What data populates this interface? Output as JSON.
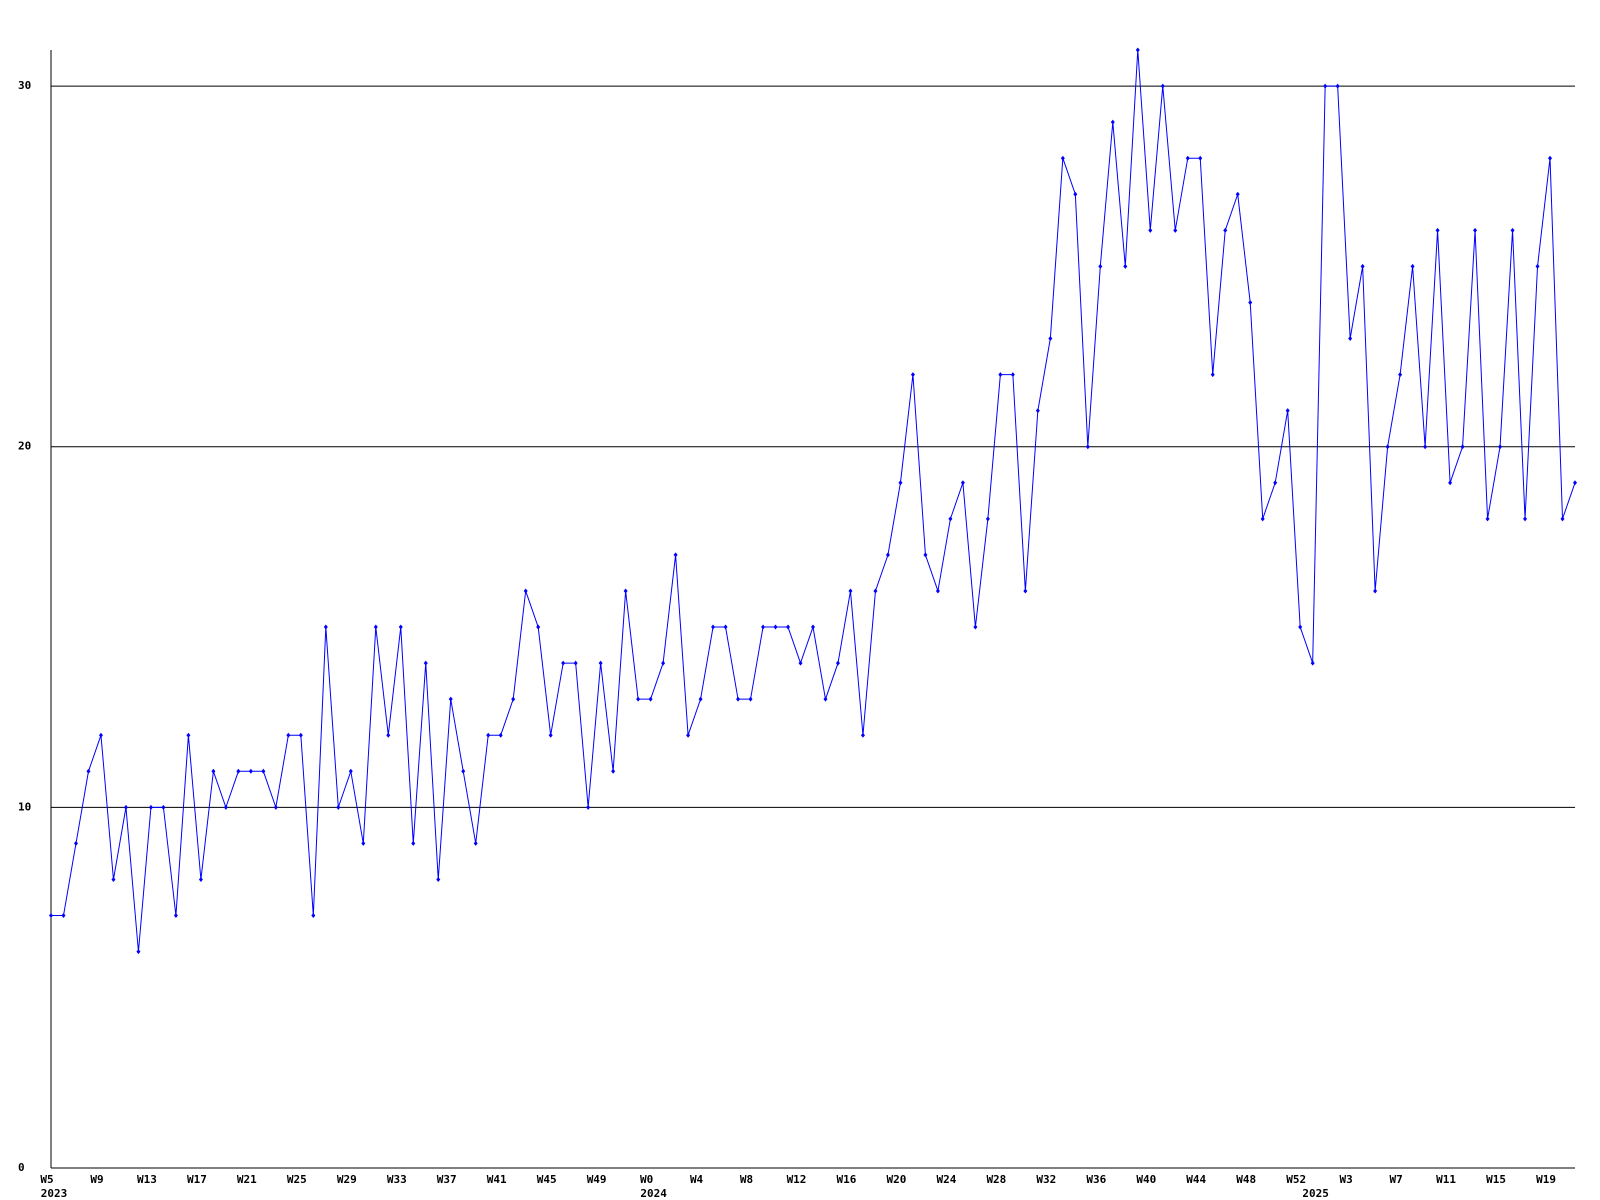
{
  "chart_data": {
    "type": "line",
    "categories": [
      "W5",
      null,
      null,
      null,
      "W9",
      null,
      null,
      null,
      "W13",
      null,
      null,
      null,
      "W17",
      null,
      null,
      null,
      "W21",
      null,
      null,
      null,
      "W25",
      null,
      null,
      null,
      "W29",
      null,
      null,
      null,
      "W33",
      null,
      null,
      null,
      "W37",
      null,
      null,
      null,
      "W41",
      null,
      null,
      null,
      "W45",
      null,
      null,
      null,
      "W49",
      null,
      null,
      null,
      "W0",
      null,
      null,
      null,
      "W4",
      null,
      null,
      null,
      "W8",
      null,
      null,
      null,
      "W12",
      null,
      null,
      null,
      "W16",
      null,
      null,
      null,
      "W20",
      null,
      null,
      null,
      "W24",
      null,
      null,
      null,
      "W28",
      null,
      null,
      null,
      "W32",
      null,
      null,
      null,
      "W36",
      null,
      null,
      null,
      "W40",
      null,
      null,
      null,
      "W44",
      null,
      null,
      null,
      "W48",
      null,
      null,
      null,
      "W52",
      null,
      null,
      null,
      "W3",
      null,
      null,
      null,
      "W7",
      null,
      null,
      null,
      "W11",
      null,
      null,
      null,
      "W15",
      null,
      null,
      null,
      "W19",
      null,
      null
    ],
    "year_labels": [
      "2023",
      null,
      null,
      null,
      null,
      null,
      null,
      null,
      null,
      null,
      null,
      null,
      null,
      null,
      null,
      null,
      null,
      null,
      null,
      null,
      null,
      null,
      null,
      null,
      null,
      null,
      null,
      null,
      null,
      null,
      null,
      null,
      null,
      null,
      null,
      null,
      null,
      null,
      null,
      null,
      null,
      null,
      null,
      null,
      null,
      null,
      null,
      null,
      "2024",
      null,
      null,
      null,
      null,
      null,
      null,
      null,
      null,
      null,
      null,
      null,
      null,
      null,
      null,
      null,
      null,
      null,
      null,
      null,
      null,
      null,
      null,
      null,
      null,
      null,
      null,
      null,
      null,
      null,
      null,
      null,
      null,
      null,
      null,
      null,
      null,
      null,
      null,
      null,
      null,
      null,
      null,
      null,
      null,
      null,
      null,
      null,
      null,
      null,
      null,
      null,
      null,
      "2025",
      null,
      null,
      null,
      null,
      null,
      null,
      null,
      null,
      null,
      null,
      null,
      null,
      null,
      null,
      null,
      null,
      null,
      null,
      null,
      null,
      null
    ],
    "values": [
      7,
      7,
      9,
      11,
      12,
      8,
      10,
      6,
      10,
      10,
      7,
      12,
      8,
      11,
      10,
      11,
      11,
      11,
      10,
      12,
      12,
      7,
      15,
      10,
      11,
      9,
      15,
      12,
      15,
      9,
      14,
      8,
      13,
      11,
      9,
      12,
      12,
      13,
      16,
      15,
      12,
      14,
      14,
      10,
      14,
      11,
      16,
      13,
      13,
      14,
      17,
      12,
      13,
      15,
      15,
      13,
      13,
      15,
      15,
      15,
      14,
      15,
      13,
      14,
      16,
      12,
      16,
      17,
      19,
      22,
      17,
      16,
      18,
      19,
      15,
      18,
      22,
      22,
      16,
      21,
      23,
      28,
      27,
      20,
      25,
      29,
      25,
      31,
      26,
      30,
      26,
      28,
      28,
      22,
      26,
      27,
      24,
      18,
      19,
      21,
      15,
      14,
      30,
      30,
      23,
      25,
      16,
      20,
      22,
      25,
      20,
      26,
      19,
      20,
      26,
      18,
      20,
      26,
      18,
      25,
      28,
      18,
      19
    ],
    "color": "#0000ff",
    "ylim": [
      0,
      31
    ],
    "yticks": [
      0,
      10,
      20,
      30
    ],
    "grid": true
  }
}
